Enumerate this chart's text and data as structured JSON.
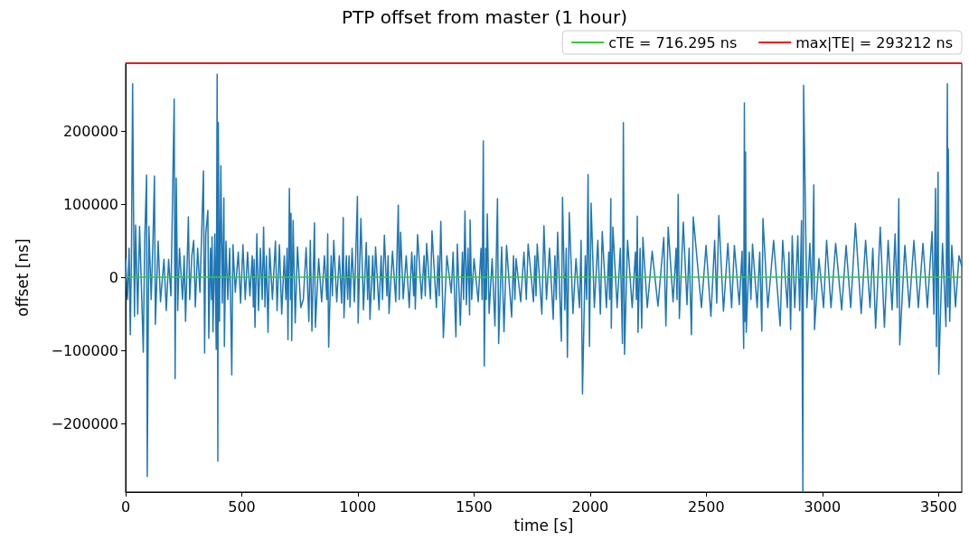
{
  "chart_data": {
    "type": "line",
    "title": "PTP offset from master (1 hour)",
    "xlabel": "time [s]",
    "ylabel": "offset [ns]",
    "color": "#1f77b4",
    "x": [
      0,
      8,
      15,
      20,
      25,
      30,
      34,
      38,
      43,
      52,
      60,
      70,
      76,
      82,
      90,
      93,
      100,
      110,
      118,
      124,
      128,
      140,
      150,
      165,
      175,
      185,
      195,
      209,
      213,
      218,
      224,
      232,
      245,
      252,
      258,
      270,
      276,
      285,
      293,
      300,
      310,
      320,
      335,
      340,
      345,
      354,
      358,
      365,
      370,
      372,
      376,
      384,
      390,
      394,
      397,
      399,
      404,
      410,
      416,
      423,
      425,
      432,
      440,
      448,
      457,
      462,
      472,
      485,
      495,
      505,
      515,
      525,
      535,
      545,
      550,
      553,
      557,
      565,
      572,
      580,
      588,
      594,
      600,
      606,
      613,
      620,
      632,
      645,
      652,
      662,
      672,
      683,
      690,
      695,
      699,
      705,
      710,
      712,
      715,
      721,
      730,
      740,
      754,
      765,
      777,
      789,
      795,
      802,
      813,
      817,
      831,
      844,
      856,
      866,
      870,
      874,
      885,
      890,
      896,
      909,
      920,
      930,
      937,
      940,
      950,
      956,
      962,
      966,
      975,
      985,
      998,
      1001,
      1013,
      1024,
      1036,
      1042,
      1047,
      1052,
      1064,
      1070,
      1076,
      1091,
      1100,
      1106,
      1114,
      1125,
      1130,
      1134,
      1149,
      1163,
      1174,
      1178,
      1184,
      1195,
      1208,
      1221,
      1232,
      1240,
      1244,
      1247,
      1257,
      1274,
      1285,
      1290,
      1296,
      1312,
      1319,
      1338,
      1345,
      1350,
      1357,
      1368,
      1383,
      1402,
      1410,
      1422,
      1428,
      1441,
      1450,
      1455,
      1461,
      1467,
      1474,
      1481,
      1483,
      1490,
      1500,
      1518,
      1530,
      1535,
      1540,
      1544,
      1550,
      1553,
      1557,
      1565,
      1578,
      1590,
      1601,
      1606,
      1619,
      1629,
      1640,
      1662,
      1670,
      1676,
      1681,
      1701,
      1715,
      1725,
      1733,
      1756,
      1762,
      1767,
      1772,
      1792,
      1801,
      1812,
      1825,
      1841,
      1848,
      1854,
      1860,
      1876,
      1881,
      1891,
      1897,
      1902,
      1910,
      1926,
      1939,
      1954,
      1961,
      1967,
      1979,
      1985,
      1991,
      1997,
      2004,
      2018,
      2033,
      2044,
      2052,
      2070,
      2080,
      2084,
      2089,
      2091,
      2098,
      2116,
      2130,
      2139,
      2143,
      2148,
      2161,
      2181,
      2195,
      2199,
      2203,
      2206,
      2215,
      2222,
      2227,
      2246,
      2267,
      2292,
      2317,
      2326,
      2336,
      2357,
      2370,
      2374,
      2379,
      2384,
      2401,
      2417,
      2426,
      2436,
      2444,
      2479,
      2499,
      2520,
      2536,
      2545,
      2554,
      2574,
      2593,
      2609,
      2621,
      2642,
      2654,
      2661,
      2664,
      2667,
      2669,
      2672,
      2685,
      2692,
      2699,
      2719,
      2730,
      2739,
      2744,
      2765,
      2790,
      2818,
      2829,
      2849,
      2856,
      2863,
      2870,
      2881,
      2894,
      2902,
      2910,
      2916,
      2919,
      2933,
      2946,
      2955,
      2963,
      2966,
      2985,
      3005,
      3018,
      3037,
      3057,
      3083,
      3102,
      3122,
      3142,
      3167,
      3186,
      3205,
      3217,
      3229,
      3249,
      3267,
      3283,
      3300,
      3313,
      3322,
      3329,
      3333,
      3355,
      3374,
      3394,
      3413,
      3433,
      3452,
      3472,
      3480,
      3487,
      3491,
      3498,
      3501,
      3517,
      3532,
      3538,
      3540,
      3542,
      3548,
      3557,
      3573,
      3588,
      3600
    ],
    "values": [
      25000,
      -30000,
      40000,
      -78000,
      30000,
      265000,
      92000,
      -53000,
      72000,
      -50000,
      70000,
      -35000,
      -102000,
      50000,
      140000,
      -272000,
      70000,
      -30000,
      55000,
      139000,
      -64000,
      50000,
      -33000,
      25000,
      -45000,
      25000,
      -25000,
      244000,
      -138000,
      136000,
      -45000,
      40000,
      -30000,
      30000,
      -60000,
      83000,
      -30000,
      30000,
      51000,
      -40000,
      40000,
      -20000,
      146000,
      -103000,
      60000,
      92000,
      -83000,
      40000,
      -30000,
      56000,
      -74000,
      60000,
      -98000,
      278000,
      -251000,
      212000,
      -60000,
      153000,
      -35000,
      109000,
      -94000,
      50000,
      -30000,
      40000,
      -133000,
      45000,
      -20000,
      35000,
      -35000,
      45000,
      -30000,
      35000,
      -25000,
      30000,
      -40000,
      25000,
      -68000,
      60000,
      -45000,
      40000,
      -30000,
      69000,
      -40000,
      30000,
      -75000,
      40000,
      -30000,
      50000,
      -45000,
      45000,
      -50000,
      30000,
      -30000,
      40000,
      -85000,
      122000,
      -30000,
      88000,
      -86000,
      78000,
      -62000,
      42000,
      -41000,
      -30000,
      41000,
      -60000,
      51000,
      -73000,
      75000,
      -68000,
      26000,
      -33000,
      30000,
      -30000,
      60000,
      -95000,
      30000,
      -25000,
      51000,
      -33000,
      30000,
      -35000,
      82000,
      -55000,
      30000,
      -30000,
      30000,
      -40000,
      40000,
      -33000,
      111000,
      -62000,
      81000,
      -44000,
      48000,
      -30000,
      30000,
      -57000,
      30000,
      -30000,
      42000,
      -44000,
      30000,
      -30000,
      58000,
      -25000,
      30000,
      -49000,
      36000,
      -33000,
      99000,
      -30000,
      62000,
      -29000,
      30000,
      -41000,
      35000,
      -25000,
      30000,
      -43000,
      59000,
      -29000,
      30000,
      -25000,
      47000,
      -29000,
      64000,
      -41000,
      30000,
      -25000,
      77000,
      -82000,
      30000,
      -21000,
      35000,
      -81000,
      46000,
      -65000,
      35000,
      -30000,
      91000,
      -37000,
      40000,
      -51000,
      79000,
      -30000,
      26000,
      -33000,
      40000,
      -30000,
      187000,
      -121000,
      40000,
      -30000,
      87000,
      -49000,
      26000,
      -66000,
      108000,
      -90000,
      42000,
      -74000,
      44000,
      -54000,
      30000,
      -30000,
      26000,
      -33000,
      35000,
      -30000,
      46000,
      -33000,
      30000,
      -25000,
      46000,
      -50000,
      71000,
      -30000,
      40000,
      -57000,
      30000,
      -30000,
      62000,
      -87000,
      110000,
      -44000,
      40000,
      -109000,
      89000,
      -49000,
      26000,
      -41000,
      51000,
      -159000,
      30000,
      -30000,
      141000,
      -94000,
      102000,
      -41000,
      51000,
      -50000,
      63000,
      -41000,
      35000,
      -30000,
      108000,
      -69000,
      69000,
      -41000,
      40000,
      -90000,
      212000,
      -105000,
      51000,
      -41000,
      35000,
      -30000,
      84000,
      -75000,
      40000,
      -69000,
      55000,
      -41000,
      36000,
      -39000,
      55000,
      -66000,
      69000,
      -33000,
      40000,
      -30000,
      114000,
      -56000,
      76000,
      -37000,
      40000,
      -78000,
      83000,
      -41000,
      44000,
      -53000,
      51000,
      -35000,
      85000,
      -46000,
      47000,
      -41000,
      44000,
      -37000,
      36000,
      -97000,
      239000,
      -60000,
      172000,
      -75000,
      35000,
      -30000,
      46000,
      -41000,
      35000,
      -73000,
      81000,
      -41000,
      51000,
      -66000,
      51000,
      -41000,
      35000,
      -71000,
      57000,
      -41000,
      57000,
      -45000,
      78000,
      -293000,
      263000,
      -41000,
      47000,
      -30000,
      127000,
      -71000,
      26000,
      -41000,
      51000,
      -41000,
      47000,
      -44000,
      44000,
      -41000,
      74000,
      -49000,
      51000,
      -41000,
      40000,
      -69000,
      69000,
      -68000,
      51000,
      -44000,
      60000,
      -41000,
      108000,
      -92000,
      44000,
      -41000,
      51000,
      -41000,
      47000,
      -41000,
      63000,
      -50000,
      122000,
      -94000,
      144000,
      -132000,
      47000,
      -67000,
      265000,
      -40000,
      176000,
      -60000,
      44000,
      -40000,
      30000,
      15000
    ],
    "xlim": [
      0,
      3600
    ],
    "xticks": [
      0,
      500,
      1000,
      1500,
      2000,
      2500,
      3000,
      3500
    ],
    "ylim": [
      -293212,
      293212
    ],
    "yticks": [
      {
        "value": -200000,
        "label": "−200000"
      },
      {
        "value": -100000,
        "label": "−100000"
      },
      0,
      100000,
      200000
    ],
    "ref_lines": [
      {
        "axis": "y",
        "value": 716.295,
        "label": "cTE = 716.295 ns",
        "color": "#32cd32"
      },
      {
        "axis": "y",
        "value": 293212,
        "label": "max|TE| = 293212 ns",
        "color": "#ff0000"
      }
    ],
    "legend": "top right"
  }
}
